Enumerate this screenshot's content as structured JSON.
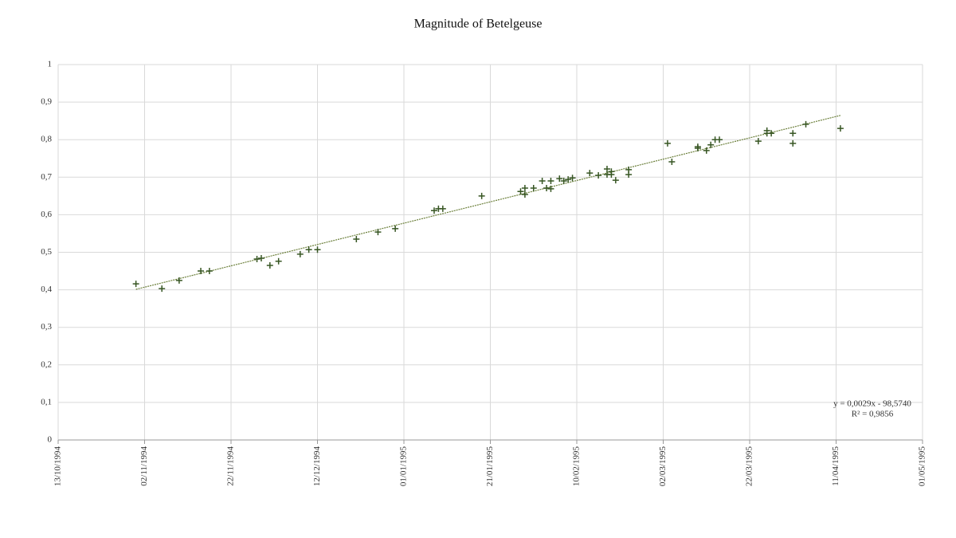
{
  "chart_data": {
    "type": "scatter",
    "title": "Magnitude of Betelgeuse",
    "color": "#375623",
    "trendline": true,
    "trendline_color": "#6b7f3a",
    "grid": true,
    "annotations": [
      "y = 0,0029x - 98,5740",
      "R² = 0,9856"
    ],
    "x": [
      "1994-10-31",
      "1994-11-06",
      "1994-11-10",
      "1994-11-15",
      "1994-11-17",
      "1994-11-28",
      "1994-11-29",
      "1994-12-01",
      "1994-12-03",
      "1994-12-08",
      "1994-12-10",
      "1994-12-12",
      "1994-12-21",
      "1994-12-26",
      "1994-12-30",
      "1995-01-08",
      "1995-01-09",
      "1995-01-10",
      "1995-01-19",
      "1995-01-28",
      "1995-01-29",
      "1995-01-29",
      "1995-01-31",
      "1995-02-02",
      "1995-02-03",
      "1995-02-04",
      "1995-02-04",
      "1995-02-06",
      "1995-02-07",
      "1995-02-08",
      "1995-02-09",
      "1995-02-13",
      "1995-02-15",
      "1995-02-17",
      "1995-02-17",
      "1995-02-18",
      "1995-02-18",
      "1995-02-19",
      "1995-02-22",
      "1995-02-22",
      "1995-03-03",
      "1995-03-04",
      "1995-03-10",
      "1995-03-10",
      "1995-03-12",
      "1995-03-13",
      "1995-03-14",
      "1995-03-15",
      "1995-03-24",
      "1995-03-26",
      "1995-03-26",
      "1995-03-27",
      "1995-04-01",
      "1995-04-01",
      "1995-04-04",
      "1995-04-12"
    ],
    "values": [
      0.416,
      0.403,
      0.425,
      0.45,
      0.45,
      0.482,
      0.484,
      0.465,
      0.476,
      0.495,
      0.507,
      0.507,
      0.535,
      0.554,
      0.563,
      0.611,
      0.616,
      0.616,
      0.65,
      0.662,
      0.671,
      0.654,
      0.671,
      0.69,
      0.671,
      0.69,
      0.669,
      0.696,
      0.69,
      0.694,
      0.698,
      0.711,
      0.705,
      0.722,
      0.707,
      0.715,
      0.707,
      0.692,
      0.72,
      0.707,
      0.79,
      0.741,
      0.781,
      0.777,
      0.771,
      0.786,
      0.8,
      0.8,
      0.796,
      0.824,
      0.817,
      0.817,
      0.817,
      0.79,
      0.841,
      0.83
    ],
    "xlim": [
      "1994-10-13",
      "1995-05-01"
    ],
    "xticks": [
      {
        "value": "1994-10-13",
        "label": "13/10/1994"
      },
      {
        "value": "1994-11-02",
        "label": "02/11/1994"
      },
      {
        "value": "1994-11-22",
        "label": "22/11/1994"
      },
      {
        "value": "1994-12-12",
        "label": "12/12/1994"
      },
      {
        "value": "1995-01-01",
        "label": "01/01/1995"
      },
      {
        "value": "1995-01-21",
        "label": "21/01/1995"
      },
      {
        "value": "1995-02-10",
        "label": "10/02/1995"
      },
      {
        "value": "1995-03-02",
        "label": "02/03/1995"
      },
      {
        "value": "1995-03-22",
        "label": "22/03/1995"
      },
      {
        "value": "1995-04-11",
        "label": "11/04/1995"
      },
      {
        "value": "1995-05-01",
        "label": "01/05/1995"
      }
    ],
    "ylim": [
      0,
      1
    ],
    "yticks": [
      0,
      {
        "value": 0.1,
        "label": "0,1"
      },
      {
        "value": 0.2,
        "label": "0,2"
      },
      {
        "value": 0.3,
        "label": "0,3"
      },
      {
        "value": 0.4,
        "label": "0,4"
      },
      {
        "value": 0.5,
        "label": "0,5"
      },
      {
        "value": 0.6,
        "label": "0,6"
      },
      {
        "value": 0.7,
        "label": "0,7"
      },
      {
        "value": 0.8,
        "label": "0,8"
      },
      {
        "value": 0.9,
        "label": "0,9"
      },
      1
    ]
  }
}
